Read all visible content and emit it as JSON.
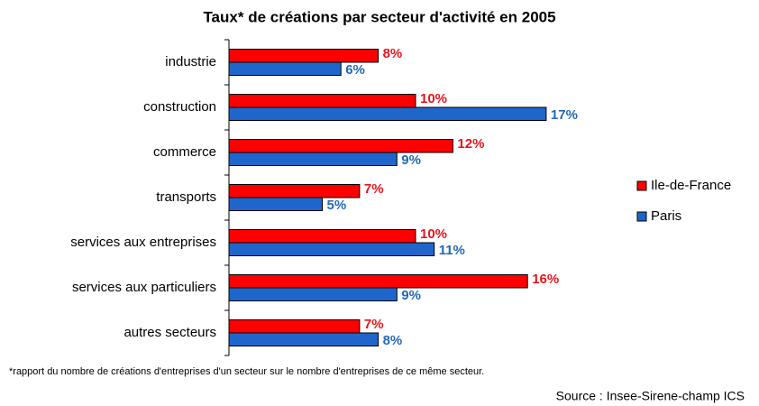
{
  "chart_data": {
    "type": "hbar",
    "title": "Taux* de créations par secteur d'activité en 2005",
    "categories": [
      "industrie",
      "construction",
      "commerce",
      "transports",
      "services aux entreprises",
      "services aux particuliers",
      "autres secteurs"
    ],
    "series": [
      {
        "name": "Ile-de-France",
        "color": "#ff0000",
        "label_color": "#e8141c",
        "values": [
          8,
          10,
          12,
          7,
          10,
          16,
          7
        ],
        "value_labels": [
          "8%",
          "10%",
          "12%",
          "7%",
          "10%",
          "16%",
          "7%"
        ]
      },
      {
        "name": "Paris",
        "color": "#1f66cc",
        "label_color": "#2468b8",
        "values": [
          6,
          17,
          9,
          5,
          11,
          9,
          8
        ],
        "value_labels": [
          "6%",
          "17%",
          "9%",
          "5%",
          "11%",
          "9%",
          "8%"
        ]
      }
    ],
    "legend": "right",
    "footnote": "*rapport du nombre de créations d'entreprises d'un secteur sur le nombre d'entreprises de ce même secteur.",
    "source": "Source : Insee-Sirene-champ ICS"
  }
}
